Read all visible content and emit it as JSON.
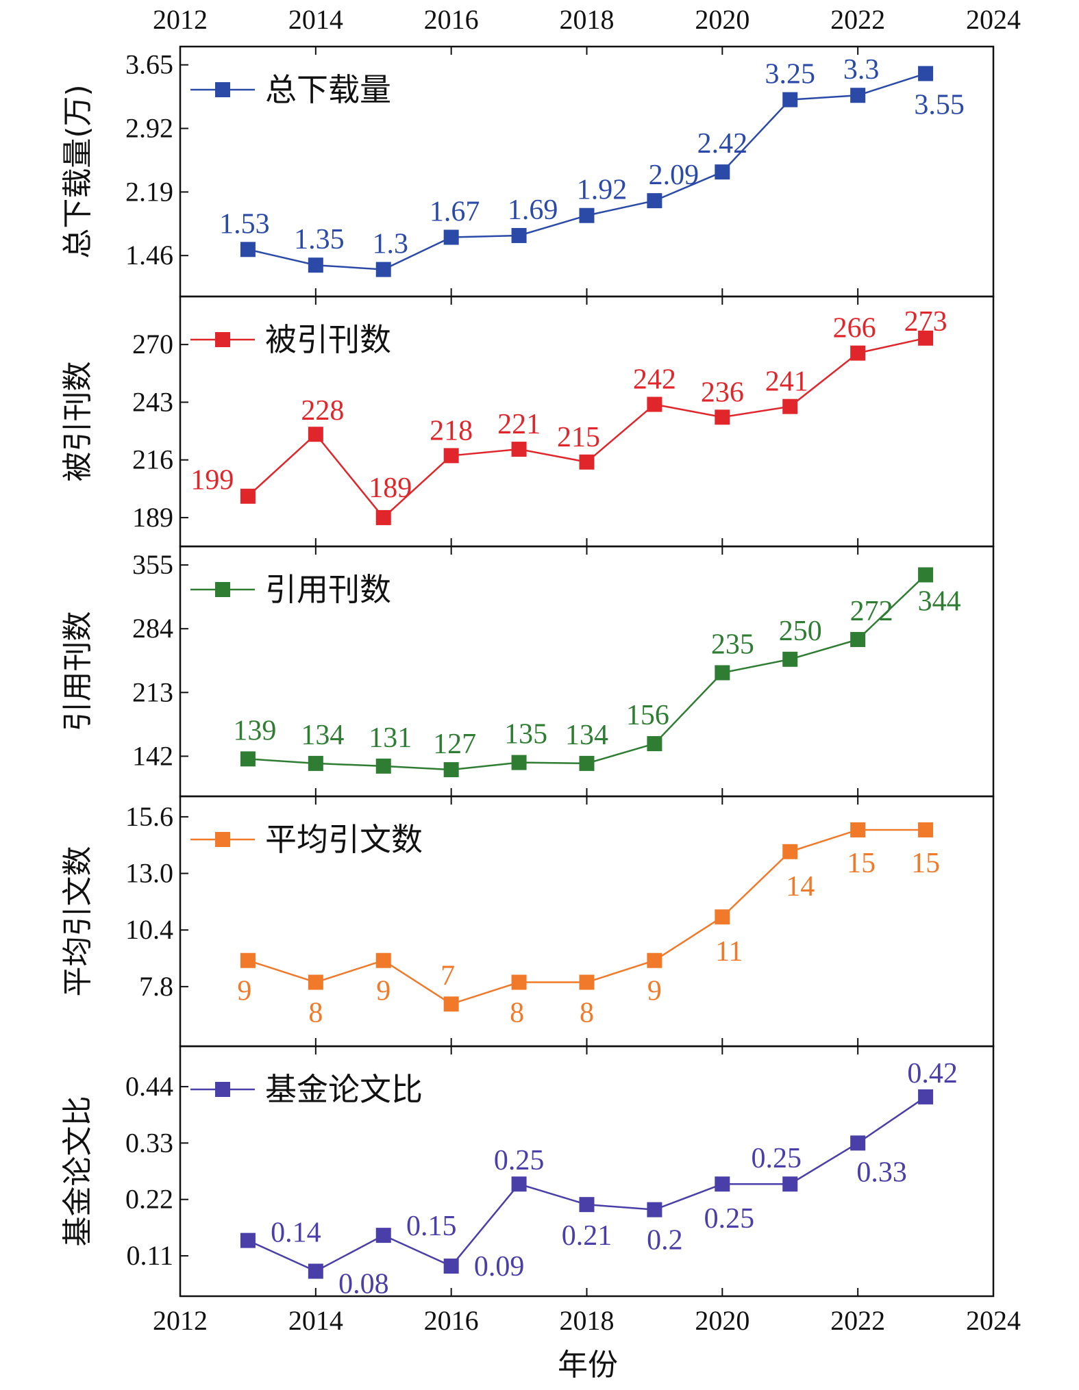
{
  "chart_data": {
    "type": "line",
    "x": [
      2013,
      2014,
      2015,
      2016,
      2017,
      2018,
      2019,
      2020,
      2021,
      2022,
      2023
    ],
    "xlim": [
      2012,
      2024
    ],
    "xticks": [
      "2012",
      "2014",
      "2016",
      "2018",
      "2020",
      "2022",
      "2024"
    ],
    "xlabel": "年份",
    "grid": false,
    "legend_position": "top-left of each panel",
    "panels": [
      {
        "name": "总下载量",
        "ylabel": "总下载量(万)",
        "color": "#2b4aa8",
        "yticks": [
          "1.46",
          "2.19",
          "2.92",
          "3.65"
        ],
        "ylim": [
          1.1,
          3.75
        ],
        "values": [
          1.53,
          1.35,
          1.3,
          1.67,
          1.69,
          1.92,
          2.09,
          2.42,
          3.25,
          3.3,
          3.55
        ],
        "labels": [
          "1.53",
          "1.35",
          "1.3",
          "1.67",
          "1.69",
          "1.92",
          "2.09",
          "2.42",
          "3.25",
          "3.3",
          "3.55"
        ]
      },
      {
        "name": "被引刊数",
        "ylabel": "被引刊数",
        "color": "#e0262b",
        "yticks": [
          "189",
          "216",
          "243",
          "270"
        ],
        "ylim": [
          180,
          288
        ],
        "values": [
          199,
          228,
          189,
          218,
          221,
          215,
          242,
          236,
          241,
          266,
          273
        ],
        "labels": [
          "199",
          "228",
          "189",
          "218",
          "221",
          "215",
          "242",
          "236",
          "241",
          "266",
          "273"
        ]
      },
      {
        "name": "引用刊数",
        "ylabel": "引用刊数",
        "color": "#2e7d32",
        "yticks": [
          "142",
          "213",
          "284",
          "355"
        ],
        "ylim": [
          108,
          365
        ],
        "values": [
          139,
          134,
          131,
          127,
          135,
          134,
          156,
          235,
          250,
          272,
          344
        ],
        "labels": [
          "139",
          "134",
          "131",
          "127",
          "135",
          "134",
          "156",
          "235",
          "250",
          "272",
          "344"
        ]
      },
      {
        "name": "平均引文数",
        "ylabel": "平均引文数",
        "color": "#f07a2a",
        "yticks": [
          "7.8",
          "10.4",
          "13.0",
          "15.6"
        ],
        "ylim": [
          5.5,
          16.1
        ],
        "values": [
          9,
          8,
          9,
          7,
          8,
          8,
          9,
          11,
          14,
          15,
          15
        ],
        "labels": [
          "9",
          "8",
          "9",
          "7",
          "8",
          "8",
          "9",
          "11",
          "14",
          "15",
          "15"
        ]
      },
      {
        "name": "基金论文比",
        "ylabel": "基金论文比",
        "color": "#4a3ea8",
        "yticks": [
          "0.11",
          "0.22",
          "0.33",
          "0.44"
        ],
        "ylim": [
          0.05,
          0.5
        ],
        "values": [
          0.14,
          0.08,
          0.15,
          0.09,
          0.25,
          0.21,
          0.2,
          0.25,
          0.25,
          0.33,
          0.42
        ],
        "labels": [
          "0.14",
          "0.08",
          "0.15",
          "0.09",
          "0.25",
          "0.21",
          "0.2",
          "0.25",
          "0.25",
          "0.33",
          "0.42"
        ]
      }
    ]
  }
}
